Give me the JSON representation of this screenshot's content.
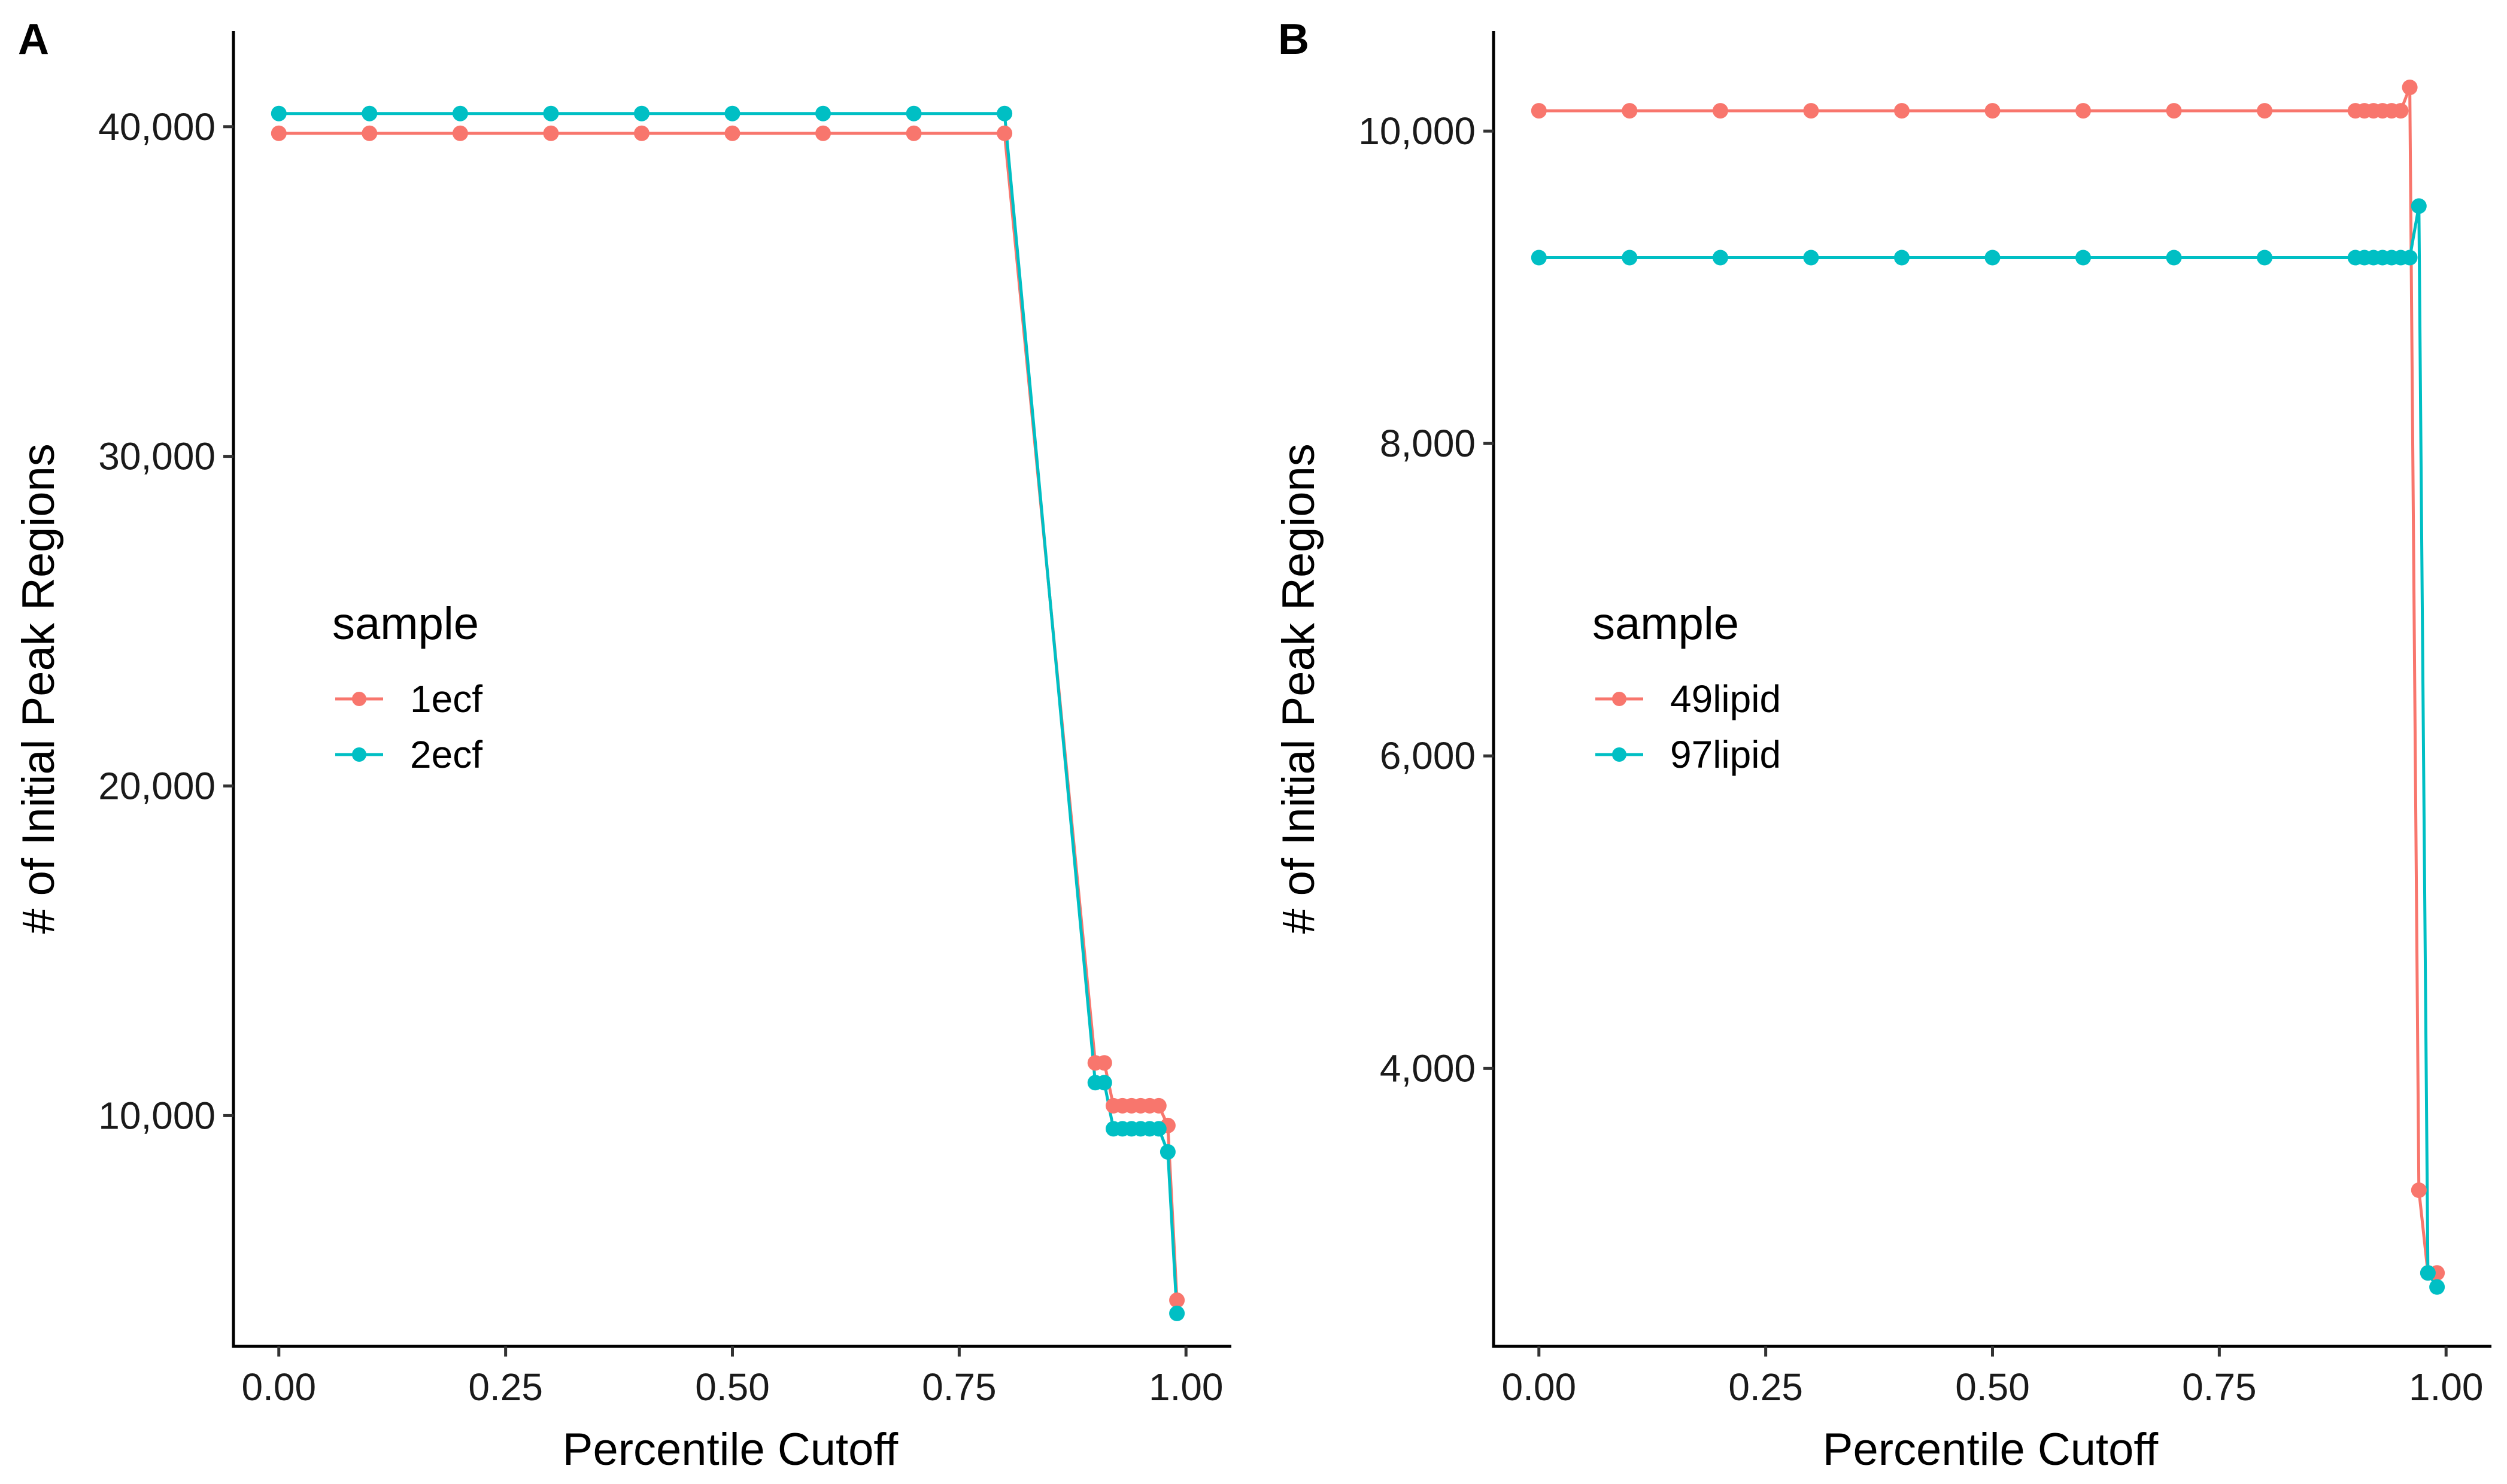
{
  "chart_data": [
    {
      "type": "line",
      "panel": "A",
      "title": "",
      "xlabel": "Percentile Cutoff",
      "ylabel": "# of Initial Peak Regions",
      "xlim": [
        -0.05,
        1.05
      ],
      "ylim": [
        3000,
        42900
      ],
      "x_ticks": [
        0,
        0.25,
        0.5,
        0.75,
        1.0
      ],
      "x_tick_labels": [
        "0.00",
        "0.25",
        "0.50",
        "0.75",
        "1.00"
      ],
      "y_ticks": [
        10000,
        20000,
        30000,
        40000
      ],
      "y_tick_labels": [
        "10,000",
        "20,000",
        "30,000",
        "40,000"
      ],
      "legend": {
        "title": "sample",
        "position": "left-center",
        "entries": [
          "1ecf",
          "2ecf"
        ]
      },
      "series": [
        {
          "name": "1ecf",
          "color": "#F8766D",
          "x": [
            0,
            0.1,
            0.2,
            0.3,
            0.4,
            0.5,
            0.6,
            0.7,
            0.8,
            0.9,
            0.91,
            0.92,
            0.93,
            0.94,
            0.95,
            0.96,
            0.97,
            0.98,
            0.99
          ],
          "y": [
            39800,
            39800,
            39800,
            39800,
            39800,
            39800,
            39800,
            39800,
            39800,
            11600,
            11600,
            10300,
            10300,
            10300,
            10300,
            10300,
            10300,
            9700,
            4400
          ]
        },
        {
          "name": "2ecf",
          "color": "#00BFC4",
          "x": [
            0,
            0.1,
            0.2,
            0.3,
            0.4,
            0.5,
            0.6,
            0.7,
            0.8,
            0.9,
            0.91,
            0.92,
            0.93,
            0.94,
            0.95,
            0.96,
            0.97,
            0.98,
            0.99
          ],
          "y": [
            40400,
            40400,
            40400,
            40400,
            40400,
            40400,
            40400,
            40400,
            40400,
            11000,
            11000,
            9600,
            9600,
            9600,
            9600,
            9600,
            9600,
            8900,
            4000
          ]
        }
      ]
    },
    {
      "type": "line",
      "panel": "B",
      "title": "",
      "xlabel": "Percentile Cutoff",
      "ylabel": "# of Initial Peak Regions",
      "xlim": [
        -0.05,
        1.05
      ],
      "ylim": [
        2220,
        10640
      ],
      "x_ticks": [
        0,
        0.25,
        0.5,
        0.75,
        1.0
      ],
      "x_tick_labels": [
        "0.00",
        "0.25",
        "0.50",
        "0.75",
        "1.00"
      ],
      "y_ticks": [
        4000,
        6000,
        8000,
        10000
      ],
      "y_tick_labels": [
        "4,000",
        "6,000",
        "8,000",
        "10,000"
      ],
      "legend": {
        "title": "sample",
        "position": "left-center",
        "entries": [
          "49lipid",
          "97lipid"
        ]
      },
      "series": [
        {
          "name": "49lipid",
          "color": "#F8766D",
          "x": [
            0,
            0.1,
            0.2,
            0.3,
            0.4,
            0.5,
            0.6,
            0.7,
            0.8,
            0.9,
            0.91,
            0.92,
            0.93,
            0.94,
            0.95,
            0.96,
            0.97,
            0.98,
            0.99
          ],
          "y": [
            10130,
            10130,
            10130,
            10130,
            10130,
            10130,
            10130,
            10130,
            10130,
            10130,
            10130,
            10130,
            10130,
            10130,
            10130,
            10280,
            3220,
            2690,
            2690
          ]
        },
        {
          "name": "97lipid",
          "color": "#00BFC4",
          "x": [
            0,
            0.1,
            0.2,
            0.3,
            0.4,
            0.5,
            0.6,
            0.7,
            0.8,
            0.9,
            0.91,
            0.92,
            0.93,
            0.94,
            0.95,
            0.96,
            0.97,
            0.98,
            0.99
          ],
          "y": [
            9190,
            9190,
            9190,
            9190,
            9190,
            9190,
            9190,
            9190,
            9190,
            9190,
            9190,
            9190,
            9190,
            9190,
            9190,
            9190,
            9520,
            2690,
            2600
          ]
        }
      ]
    }
  ]
}
